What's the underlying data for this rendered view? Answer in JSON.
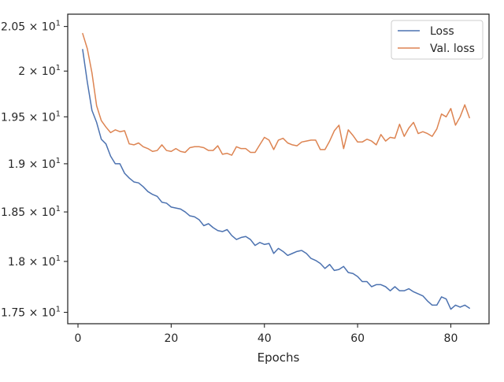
{
  "chart_data": {
    "type": "line",
    "xlabel": "Epochs",
    "ylabel": "",
    "xlim": [
      -2.2,
      88.2
    ],
    "ylim": [
      17.39,
      20.64
    ],
    "y_scale": "log",
    "grid": false,
    "legend_position": "top-right",
    "x_ticks": [
      0,
      20,
      40,
      60,
      80
    ],
    "y_ticks": [
      {
        "value": 17.5,
        "mantissa": "1.75",
        "base": "10",
        "exp": "1"
      },
      {
        "value": 18.0,
        "mantissa": "1.8",
        "base": "10",
        "exp": "1"
      },
      {
        "value": 18.5,
        "mantissa": "1.85",
        "base": "10",
        "exp": "1"
      },
      {
        "value": 19.0,
        "mantissa": "1.9",
        "base": "10",
        "exp": "1"
      },
      {
        "value": 19.5,
        "mantissa": "1.95",
        "base": "10",
        "exp": "1"
      },
      {
        "value": 20.0,
        "mantissa": "2",
        "base": "10",
        "exp": "1"
      },
      {
        "value": 20.5,
        "mantissa": "2.05",
        "base": "10",
        "exp": "1"
      }
    ],
    "series": [
      {
        "name": "Loss",
        "color": "#4c72b0",
        "x": [
          1,
          2,
          3,
          4,
          5,
          6,
          7,
          8,
          9,
          10,
          11,
          12,
          13,
          14,
          15,
          16,
          17,
          18,
          19,
          20,
          21,
          22,
          23,
          24,
          25,
          26,
          27,
          28,
          29,
          30,
          31,
          32,
          33,
          34,
          35,
          36,
          37,
          38,
          39,
          40,
          41,
          42,
          43,
          44,
          45,
          46,
          47,
          48,
          49,
          50,
          51,
          52,
          53,
          54,
          55,
          56,
          57,
          58,
          59,
          60,
          61,
          62,
          63,
          64,
          65,
          66,
          67,
          68,
          69,
          70,
          71,
          72,
          73,
          74,
          75,
          76,
          77,
          78,
          79,
          80,
          81,
          82,
          83,
          84
        ],
        "y": [
          20.24,
          19.88,
          19.57,
          19.44,
          19.26,
          19.21,
          19.08,
          19.0,
          19.0,
          18.9,
          18.85,
          18.81,
          18.8,
          18.76,
          18.71,
          18.68,
          18.66,
          18.6,
          18.59,
          18.55,
          18.54,
          18.53,
          18.5,
          18.46,
          18.45,
          18.42,
          18.36,
          18.38,
          18.34,
          18.31,
          18.3,
          18.32,
          18.26,
          18.22,
          18.24,
          18.25,
          18.22,
          18.16,
          18.19,
          18.17,
          18.18,
          18.08,
          18.13,
          18.1,
          18.06,
          18.08,
          18.1,
          18.11,
          18.08,
          18.03,
          18.01,
          17.98,
          17.93,
          17.97,
          17.91,
          17.92,
          17.95,
          17.89,
          17.88,
          17.85,
          17.8,
          17.8,
          17.75,
          17.77,
          17.77,
          17.75,
          17.71,
          17.75,
          17.71,
          17.71,
          17.73,
          17.7,
          17.68,
          17.66,
          17.61,
          17.57,
          17.57,
          17.65,
          17.63,
          17.53,
          17.57,
          17.55,
          17.57,
          17.54
        ]
      },
      {
        "name": "Val. loss",
        "color": "#dd8452",
        "x": [
          1,
          2,
          3,
          4,
          5,
          6,
          7,
          8,
          9,
          10,
          11,
          12,
          13,
          14,
          15,
          16,
          17,
          18,
          19,
          20,
          21,
          22,
          23,
          24,
          25,
          26,
          27,
          28,
          29,
          30,
          31,
          32,
          33,
          34,
          35,
          36,
          37,
          38,
          39,
          40,
          41,
          42,
          43,
          44,
          45,
          46,
          47,
          48,
          49,
          50,
          51,
          52,
          53,
          54,
          55,
          56,
          57,
          58,
          59,
          60,
          61,
          62,
          63,
          64,
          65,
          66,
          67,
          68,
          69,
          70,
          71,
          72,
          73,
          74,
          75,
          76,
          77,
          78,
          79,
          80,
          81,
          82,
          83,
          84
        ],
        "y": [
          20.42,
          20.25,
          19.98,
          19.62,
          19.46,
          19.39,
          19.33,
          19.36,
          19.34,
          19.35,
          19.21,
          19.2,
          19.22,
          19.18,
          19.16,
          19.13,
          19.14,
          19.2,
          19.14,
          19.13,
          19.16,
          19.13,
          19.12,
          19.17,
          19.18,
          19.18,
          19.17,
          19.14,
          19.14,
          19.19,
          19.1,
          19.11,
          19.09,
          19.18,
          19.16,
          19.16,
          19.12,
          19.12,
          19.2,
          19.28,
          19.25,
          19.15,
          19.25,
          19.27,
          19.22,
          19.2,
          19.19,
          19.23,
          19.24,
          19.25,
          19.25,
          19.15,
          19.15,
          19.24,
          19.35,
          19.41,
          19.16,
          19.36,
          19.3,
          19.23,
          19.23,
          19.26,
          19.24,
          19.2,
          19.31,
          19.24,
          19.28,
          19.27,
          19.42,
          19.29,
          19.38,
          19.44,
          19.32,
          19.34,
          19.32,
          19.29,
          19.37,
          19.53,
          19.5,
          19.59,
          19.41,
          19.5,
          19.63,
          19.49
        ]
      }
    ]
  }
}
